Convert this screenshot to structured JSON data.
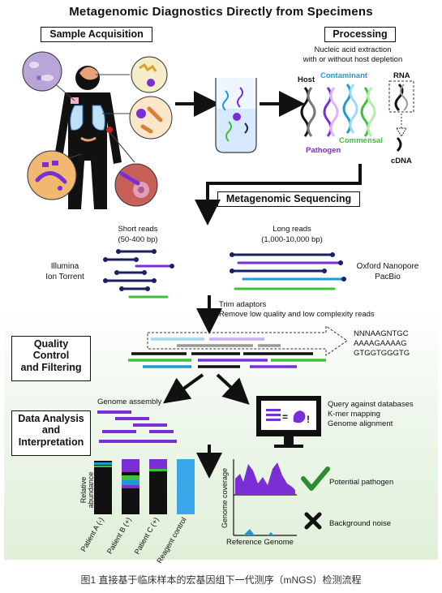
{
  "title": "Metagenomic Diagnostics Directly from Specimens",
  "sections": {
    "sample_acquisition": "Sample Acquisition",
    "processing": "Processing",
    "sequencing": "Metagenomic Sequencing",
    "quality_control": [
      "Quality",
      "Control",
      "and Filtering"
    ],
    "data_analysis": [
      "Data Analysis",
      "and",
      "Interpretation"
    ]
  },
  "processing": {
    "description": [
      "Nucleic acid extraction",
      "with or without host depletion"
    ],
    "labels": {
      "host": "Host",
      "contaminant": "Contaminant",
      "pathogen": "Pathogen",
      "commensal": "Commensal",
      "rna": "RNA",
      "cdna": "cDNA"
    }
  },
  "sequencing": {
    "short_reads": [
      "Short reads",
      "(50-400 bp)"
    ],
    "long_reads": [
      "Long reads",
      "(1,000-10,000 bp)"
    ],
    "short_platforms": [
      "Illumina",
      "Ion Torrent"
    ],
    "long_platforms": [
      "Oxford Nanopore",
      "PacBio"
    ]
  },
  "qc": {
    "steps": [
      "Trim adaptors",
      "Remove low quality and low complexity reads"
    ],
    "sequences": [
      "NNNAAGNTGC",
      "AAAAGAAAAG",
      "GTGGTGGGTG"
    ]
  },
  "analysis": {
    "genome_assembly": "Genome assembly",
    "query": [
      "Query against databases",
      "K-mer mapping",
      "Genome alignment"
    ],
    "bar_ylabel": [
      "Relative",
      "abundance"
    ],
    "samples": [
      "Patient A (-)",
      "Patient B (+)",
      "Patient C (+)",
      "Reagent control"
    ],
    "coverage_ylabel": "Genome coverage",
    "coverage_xlabel": "Reference Genome",
    "potential": "Potential pathogen",
    "noise": "Background noise"
  },
  "caption": "图1 直接基于临床样本的宏基因组下一代测序（mNGS）检测流程",
  "colors": {
    "purple": "#7a2fd6",
    "teal": "#1d9bd1",
    "green": "#3fbf3a",
    "pink": "#e04fc0",
    "navy": "#1a2060",
    "red": "#c8232a",
    "check": "#2e8b2e"
  }
}
